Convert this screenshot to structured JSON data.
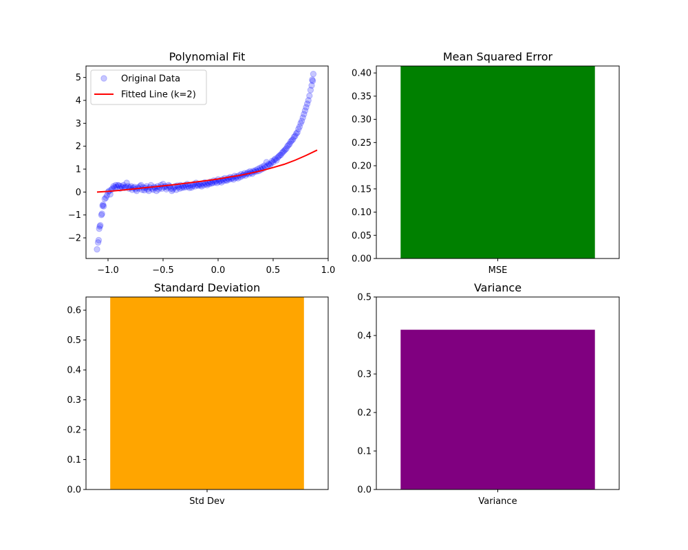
{
  "figure": {
    "background": "#ffffff"
  },
  "chart_data": [
    {
      "type": "scatter",
      "title": "Polynomial Fit",
      "xlabel": "",
      "ylabel": "",
      "xlim": [
        -1.2,
        1.0
      ],
      "ylim": [
        -2.9,
        5.5
      ],
      "xticks": [
        -1.0,
        -0.5,
        0.0,
        0.5,
        1.0
      ],
      "xtick_labels": [
        "−1.0",
        "−0.5",
        "0.0",
        "0.5",
        "1.0"
      ],
      "yticks": [
        -2,
        -1,
        0,
        1,
        2,
        3,
        4,
        5
      ],
      "ytick_labels": [
        "−2",
        "−1",
        "0",
        "1",
        "2",
        "3",
        "4",
        "5"
      ],
      "grid": false,
      "legend": {
        "position": "upper-left",
        "entries": [
          "Original Data",
          "Fitted Line (k=2)"
        ]
      },
      "series": [
        {
          "name": "Original Data",
          "kind": "scatter",
          "color": "#0000ff",
          "alpha": 0.22,
          "points": [
            [
              -1.1,
              -2.5
            ],
            [
              -1.09,
              -2.2
            ],
            [
              -1.085,
              -2.1
            ],
            [
              -1.08,
              -1.6
            ],
            [
              -1.075,
              -1.5
            ],
            [
              -1.07,
              -1.45
            ],
            [
              -1.06,
              -1.0
            ],
            [
              -1.055,
              -0.95
            ],
            [
              -1.05,
              -0.6
            ],
            [
              -1.045,
              -0.55
            ],
            [
              -1.04,
              -0.62
            ],
            [
              -1.03,
              -0.3
            ],
            [
              -1.02,
              -0.25
            ],
            [
              -1.01,
              -0.15
            ],
            [
              -1.0,
              0.0
            ],
            [
              -0.99,
              0.05
            ],
            [
              -0.98,
              -0.1
            ],
            [
              -0.97,
              0.1
            ],
            [
              -0.96,
              0.15
            ],
            [
              -0.95,
              0.25
            ],
            [
              -0.94,
              0.2
            ],
            [
              -0.93,
              0.3
            ],
            [
              -0.92,
              0.22
            ],
            [
              -0.91,
              0.3
            ],
            [
              -0.9,
              0.28
            ],
            [
              -0.89,
              0.15
            ],
            [
              -0.88,
              0.25
            ],
            [
              -0.87,
              0.2
            ],
            [
              -0.86,
              0.3
            ],
            [
              -0.85,
              0.18
            ],
            [
              -0.84,
              0.22
            ],
            [
              -0.83,
              0.4
            ],
            [
              -0.82,
              0.25
            ],
            [
              -0.81,
              0.15
            ],
            [
              -0.8,
              0.2
            ],
            [
              -0.79,
              0.25
            ],
            [
              -0.78,
              0.1
            ],
            [
              -0.77,
              0.18
            ],
            [
              -0.76,
              0.22
            ],
            [
              -0.75,
              0.12
            ],
            [
              -0.74,
              0.05
            ],
            [
              -0.73,
              0.2
            ],
            [
              -0.72,
              0.15
            ],
            [
              -0.71,
              0.25
            ],
            [
              -0.7,
              0.3
            ],
            [
              -0.69,
              0.1
            ],
            [
              -0.68,
              0.2
            ],
            [
              -0.67,
              0.08
            ],
            [
              -0.66,
              0.18
            ],
            [
              -0.65,
              0.25
            ],
            [
              -0.64,
              0.12
            ],
            [
              -0.63,
              0.05
            ],
            [
              -0.62,
              0.2
            ],
            [
              -0.61,
              0.3
            ],
            [
              -0.6,
              0.15
            ],
            [
              -0.59,
              0.1
            ],
            [
              -0.58,
              0.22
            ],
            [
              -0.57,
              0.18
            ],
            [
              -0.56,
              0.05
            ],
            [
              -0.55,
              0.25
            ],
            [
              -0.54,
              0.12
            ],
            [
              -0.53,
              0.2
            ],
            [
              -0.52,
              0.3
            ],
            [
              -0.51,
              0.15
            ],
            [
              -0.5,
              0.35
            ],
            [
              -0.49,
              0.22
            ],
            [
              -0.48,
              0.25
            ],
            [
              -0.47,
              0.12
            ],
            [
              -0.46,
              0.2
            ],
            [
              -0.45,
              0.3
            ],
            [
              -0.44,
              0.25
            ],
            [
              -0.43,
              0.15
            ],
            [
              -0.42,
              0.05
            ],
            [
              -0.41,
              0.12
            ],
            [
              -0.4,
              0.2
            ],
            [
              -0.39,
              0.25
            ],
            [
              -0.38,
              0.1
            ],
            [
              -0.37,
              0.28
            ],
            [
              -0.36,
              0.22
            ],
            [
              -0.35,
              0.15
            ],
            [
              -0.34,
              0.3
            ],
            [
              -0.33,
              0.18
            ],
            [
              -0.32,
              0.25
            ],
            [
              -0.31,
              0.2
            ],
            [
              -0.3,
              0.3
            ],
            [
              -0.29,
              0.22
            ],
            [
              -0.28,
              0.35
            ],
            [
              -0.27,
              0.25
            ],
            [
              -0.26,
              0.18
            ],
            [
              -0.25,
              0.3
            ],
            [
              -0.24,
              0.2
            ],
            [
              -0.23,
              0.28
            ],
            [
              -0.22,
              0.35
            ],
            [
              -0.21,
              0.25
            ],
            [
              -0.2,
              0.4
            ],
            [
              -0.19,
              0.3
            ],
            [
              -0.18,
              0.28
            ],
            [
              -0.17,
              0.35
            ],
            [
              -0.16,
              0.3
            ],
            [
              -0.15,
              0.25
            ],
            [
              -0.14,
              0.38
            ],
            [
              -0.13,
              0.3
            ],
            [
              -0.12,
              0.42
            ],
            [
              -0.11,
              0.35
            ],
            [
              -0.1,
              0.3
            ],
            [
              -0.09,
              0.4
            ],
            [
              -0.08,
              0.35
            ],
            [
              -0.07,
              0.45
            ],
            [
              -0.06,
              0.38
            ],
            [
              -0.05,
              0.4
            ],
            [
              -0.04,
              0.5
            ],
            [
              -0.03,
              0.42
            ],
            [
              -0.02,
              0.48
            ],
            [
              -0.01,
              0.4
            ],
            [
              0.0,
              0.55
            ],
            [
              0.01,
              0.45
            ],
            [
              0.02,
              0.5
            ],
            [
              0.03,
              0.42
            ],
            [
              0.04,
              0.55
            ],
            [
              0.05,
              0.48
            ],
            [
              0.06,
              0.6
            ],
            [
              0.07,
              0.52
            ],
            [
              0.08,
              0.5
            ],
            [
              0.09,
              0.6
            ],
            [
              0.1,
              0.55
            ],
            [
              0.11,
              0.65
            ],
            [
              0.12,
              0.58
            ],
            [
              0.13,
              0.62
            ],
            [
              0.14,
              0.55
            ],
            [
              0.15,
              0.7
            ],
            [
              0.16,
              0.62
            ],
            [
              0.17,
              0.68
            ],
            [
              0.18,
              0.6
            ],
            [
              0.19,
              0.72
            ],
            [
              0.2,
              0.65
            ],
            [
              0.21,
              0.78
            ],
            [
              0.22,
              0.7
            ],
            [
              0.23,
              0.75
            ],
            [
              0.24,
              0.82
            ],
            [
              0.25,
              0.72
            ],
            [
              0.26,
              0.8
            ],
            [
              0.27,
              0.85
            ],
            [
              0.28,
              0.78
            ],
            [
              0.29,
              0.9
            ],
            [
              0.3,
              0.85
            ],
            [
              0.31,
              0.8
            ],
            [
              0.32,
              0.92
            ],
            [
              0.33,
              0.88
            ],
            [
              0.34,
              0.95
            ],
            [
              0.35,
              0.9
            ],
            [
              0.36,
              1.0
            ],
            [
              0.37,
              0.92
            ],
            [
              0.38,
              1.05
            ],
            [
              0.39,
              0.98
            ],
            [
              0.4,
              1.1
            ],
            [
              0.41,
              1.02
            ],
            [
              0.42,
              1.15
            ],
            [
              0.43,
              1.08
            ],
            [
              0.44,
              1.3
            ],
            [
              0.45,
              1.15
            ],
            [
              0.46,
              1.22
            ],
            [
              0.47,
              1.18
            ],
            [
              0.48,
              1.25
            ],
            [
              0.49,
              1.35
            ],
            [
              0.5,
              1.3
            ],
            [
              0.51,
              1.4
            ],
            [
              0.52,
              1.45
            ],
            [
              0.53,
              1.38
            ],
            [
              0.54,
              1.5
            ],
            [
              0.55,
              1.55
            ],
            [
              0.56,
              1.6
            ],
            [
              0.57,
              1.62
            ],
            [
              0.58,
              1.7
            ],
            [
              0.59,
              1.75
            ],
            [
              0.6,
              1.8
            ],
            [
              0.61,
              1.85
            ],
            [
              0.62,
              1.9
            ],
            [
              0.63,
              2.0
            ],
            [
              0.64,
              2.05
            ],
            [
              0.65,
              2.1
            ],
            [
              0.66,
              2.2
            ],
            [
              0.67,
              2.25
            ],
            [
              0.68,
              2.3
            ],
            [
              0.69,
              2.4
            ],
            [
              0.7,
              2.45
            ],
            [
              0.71,
              2.55
            ],
            [
              0.72,
              2.6
            ],
            [
              0.73,
              2.75
            ],
            [
              0.74,
              2.85
            ],
            [
              0.75,
              3.0
            ],
            [
              0.76,
              3.1
            ],
            [
              0.77,
              3.25
            ],
            [
              0.78,
              3.4
            ],
            [
              0.79,
              3.55
            ],
            [
              0.8,
              3.7
            ],
            [
              0.81,
              3.85
            ],
            [
              0.82,
              4.0
            ],
            [
              0.83,
              4.2
            ],
            [
              0.84,
              4.45
            ],
            [
              0.85,
              4.65
            ],
            [
              0.855,
              4.9
            ],
            [
              0.86,
              4.85
            ],
            [
              0.865,
              5.15
            ]
          ]
        },
        {
          "name": "Fitted Line (k=2)",
          "kind": "line",
          "color": "#ff0000",
          "x": [
            -1.1,
            -1.0,
            -0.9,
            -0.8,
            -0.7,
            -0.6,
            -0.5,
            -0.4,
            -0.3,
            -0.2,
            -0.1,
            0.0,
            0.1,
            0.2,
            0.3,
            0.4,
            0.5,
            0.6,
            0.7,
            0.8,
            0.9
          ],
          "y": [
            0.0,
            0.03,
            0.07,
            0.12,
            0.17,
            0.22,
            0.27,
            0.32,
            0.38,
            0.44,
            0.5,
            0.57,
            0.65,
            0.73,
            0.83,
            0.94,
            1.07,
            1.21,
            1.39,
            1.6,
            1.83
          ]
        }
      ]
    },
    {
      "type": "bar",
      "title": "Mean Squared Error",
      "xlabel": "",
      "ylabel": "",
      "categories": [
        "MSE"
      ],
      "values": [
        0.415
      ],
      "color": "#008000",
      "ylim": [
        0,
        0.415
      ],
      "yticks": [
        0,
        0.05,
        0.1,
        0.15,
        0.2,
        0.25,
        0.3,
        0.35,
        0.4
      ],
      "ytick_labels": [
        "0.00",
        "0.05",
        "0.10",
        "0.15",
        "0.20",
        "0.25",
        "0.30",
        "0.35",
        "0.40"
      ],
      "grid": false
    },
    {
      "type": "bar",
      "title": "Standard Deviation",
      "xlabel": "",
      "ylabel": "",
      "categories": [
        "Std Dev"
      ],
      "values": [
        0.644
      ],
      "color": "#ffa500",
      "ylim": [
        0,
        0.644
      ],
      "yticks": [
        0,
        0.1,
        0.2,
        0.3,
        0.4,
        0.5,
        0.6
      ],
      "ytick_labels": [
        "0.0",
        "0.1",
        "0.2",
        "0.3",
        "0.4",
        "0.5",
        "0.6"
      ],
      "grid": false
    },
    {
      "type": "bar",
      "title": "Variance",
      "xlabel": "",
      "ylabel": "",
      "categories": [
        "Variance"
      ],
      "values": [
        0.415
      ],
      "color": "#800080",
      "ylim": [
        0,
        0.5
      ],
      "yticks": [
        0,
        0.1,
        0.2,
        0.3,
        0.4,
        0.5
      ],
      "ytick_labels": [
        "0.0",
        "0.1",
        "0.2",
        "0.3",
        "0.4",
        "0.5"
      ],
      "grid": false
    }
  ]
}
